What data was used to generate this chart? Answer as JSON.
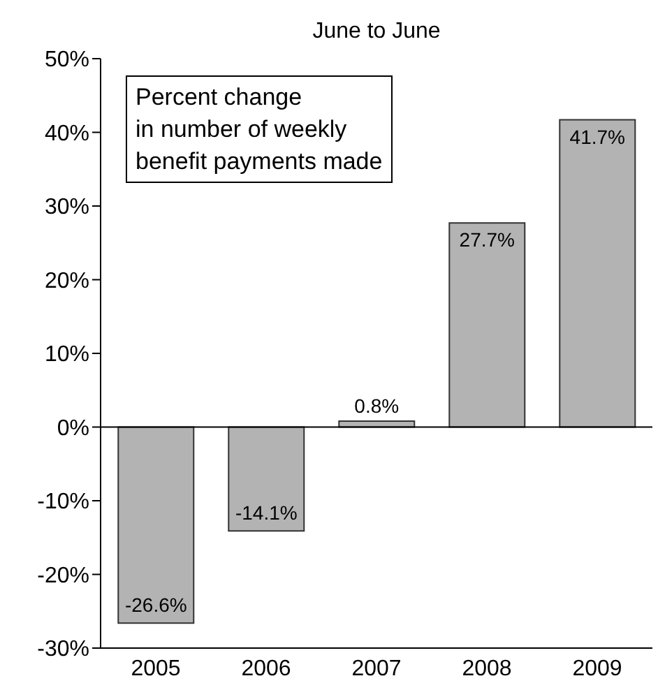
{
  "chart_data": {
    "type": "bar",
    "title": "June to June",
    "categories": [
      "2005",
      "2006",
      "2007",
      "2008",
      "2009"
    ],
    "values": [
      -26.6,
      -14.1,
      0.8,
      27.7,
      41.7
    ],
    "color": "#b3b3b3",
    "value_labels": [
      "-26.6%",
      "-14.1%",
      "0.8%",
      "27.7%",
      "41.7%"
    ],
    "ylim": [
      -30,
      50
    ],
    "yticks": [
      {
        "value": -30,
        "label": "-30%"
      },
      {
        "value": -20,
        "label": "-20%"
      },
      {
        "value": -10,
        "label": "-10%"
      },
      {
        "value": 0,
        "label": "0%"
      },
      {
        "value": 10,
        "label": "10%"
      },
      {
        "value": 20,
        "label": "20%"
      },
      {
        "value": 30,
        "label": "30%"
      },
      {
        "value": 40,
        "label": "40%"
      },
      {
        "value": 50,
        "label": "50%"
      }
    ],
    "ref_lines": [
      {
        "axis": "y",
        "value": 0,
        "color": "#000000"
      }
    ],
    "annotations": [
      "Percent change\nin number of weekly\nbenefit payments made"
    ],
    "grid": false,
    "legend": false
  }
}
